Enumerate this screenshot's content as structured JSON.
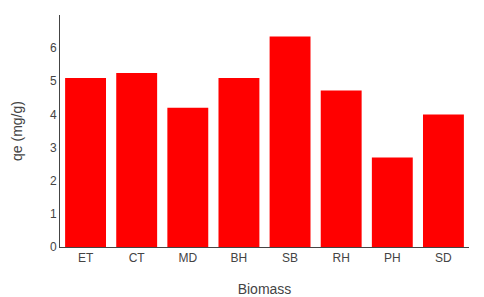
{
  "chart_data": {
    "type": "bar",
    "categories": [
      "ET",
      "CT",
      "MD",
      "BH",
      "SB",
      "RH",
      "PH",
      "SD"
    ],
    "values": [
      5.1,
      5.25,
      4.2,
      5.1,
      6.35,
      4.72,
      2.7,
      4.0
    ],
    "color": "#FF0000",
    "xlabel": "Biomass",
    "ylabel": "qe (mg/g)",
    "ylim": [
      0,
      7
    ],
    "yticks": [
      0,
      1,
      2,
      3,
      4,
      5,
      6
    ],
    "grid": false
  }
}
